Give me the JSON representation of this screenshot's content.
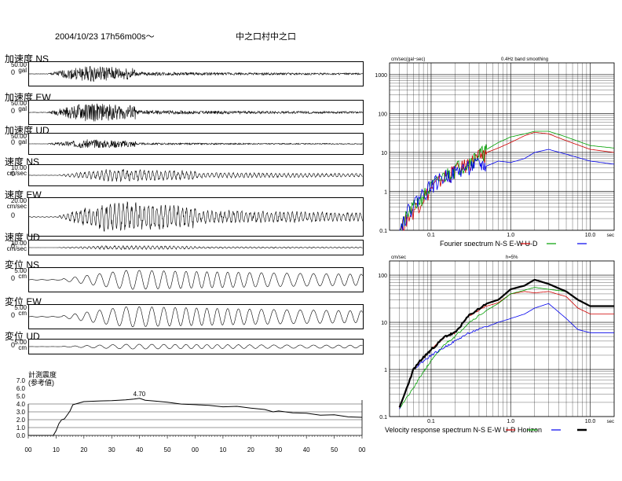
{
  "header": {
    "datetime": "2004/10/23  17h56m00s～",
    "station": "中之口村中之口"
  },
  "traces": [
    {
      "label": "加速度 NS",
      "scale": "50.00",
      "unit": "gal",
      "zero": "0",
      "amp": 0.85,
      "env": "accel",
      "seed": 1
    },
    {
      "label": "加速度 EW",
      "scale": "50.00",
      "unit": "gal",
      "zero": "0",
      "amp": 1.0,
      "env": "accel",
      "seed": 2
    },
    {
      "label": "加速度 UD",
      "scale": "50.00",
      "unit": "gal",
      "zero": "0",
      "amp": 0.55,
      "env": "accel",
      "seed": 3
    },
    {
      "label": "速度 NS",
      "scale": "10.00",
      "unit": "cm/sec",
      "zero": "0",
      "amp": 0.7,
      "env": "vel",
      "seed": 4
    },
    {
      "label": "速度 EW",
      "scale": "20.00",
      "unit": "cm/sec",
      "zero": "0",
      "amp": 0.9,
      "env": "vel",
      "seed": 5
    },
    {
      "label": "速度 UD",
      "scale": "10.00",
      "unit": "cm/sec",
      "zero": "0",
      "amp": 0.35,
      "env": "vel",
      "seed": 6
    },
    {
      "label": "変位 NS",
      "scale": "5.00",
      "unit": "cm",
      "zero": "0",
      "amp": 0.8,
      "env": "disp",
      "seed": 7
    },
    {
      "label": "変位 EW",
      "scale": "5.00",
      "unit": "cm",
      "zero": "0",
      "amp": 0.85,
      "env": "disp",
      "seed": 8
    },
    {
      "label": "変位 UD",
      "scale": "5.00",
      "unit": "cm",
      "zero": "0",
      "amp": 0.35,
      "env": "disp",
      "seed": 9
    }
  ],
  "chart_data": [
    {
      "type": "line",
      "title": "計測震度\n(参考値)",
      "xlabel": "",
      "ylabel": "",
      "xticks": [
        "00",
        "10",
        "20",
        "30",
        "40",
        "50",
        "00",
        "10",
        "20",
        "30",
        "40",
        "50",
        "00"
      ],
      "yticks": [
        "0.0",
        "1.0",
        "2.0",
        "3.0",
        "4.0",
        "5.0",
        "6.0",
        "7.0"
      ],
      "ylim": [
        0,
        7
      ],
      "peak_label": "4.70",
      "x": [
        0,
        9,
        10,
        11,
        12,
        13,
        14,
        15,
        16,
        17,
        18,
        19,
        20,
        25,
        30,
        35,
        38,
        40,
        42,
        45,
        50,
        55,
        60,
        65,
        70,
        75,
        80,
        85,
        88,
        90,
        95,
        100,
        105,
        110,
        115,
        120
      ],
      "y": [
        0.0,
        0.0,
        0.6,
        1.5,
        2.0,
        2.1,
        2.6,
        3.1,
        3.9,
        4.0,
        4.1,
        4.2,
        4.3,
        4.35,
        4.45,
        4.55,
        4.65,
        4.7,
        4.5,
        4.4,
        4.2,
        4.0,
        3.9,
        3.8,
        3.6,
        3.7,
        3.5,
        3.3,
        3.0,
        3.1,
        2.9,
        2.8,
        2.6,
        2.6,
        2.4,
        2.3
      ]
    },
    {
      "type": "line",
      "title": "0.4Hz band smoothing",
      "ylabel": "cm/sec(gal･sec)",
      "xlabel": "sec",
      "log_x": true,
      "log_y": true,
      "xlim": [
        0.03,
        20
      ],
      "ylim": [
        0.1,
        2000
      ],
      "xticks": [
        "0.1",
        "1.0",
        "10.0"
      ],
      "yticks": [
        "0.1",
        "1",
        "10",
        "100",
        "1000"
      ],
      "legend_text": "Fourier spectrum  N-S     E-W     U-D",
      "series": [
        {
          "name": "N-S",
          "color": "#d00000",
          "x": [
            0.04,
            0.05,
            0.07,
            0.1,
            0.15,
            0.2,
            0.3,
            0.4,
            0.5,
            0.7,
            1.0,
            1.5,
            2.0,
            3.0,
            5.0,
            10.0,
            20.0
          ],
          "y": [
            0.1,
            0.2,
            0.5,
            1.2,
            2.5,
            3.5,
            5.5,
            8.0,
            10,
            13,
            18,
            27,
            33,
            30,
            20,
            12,
            10
          ]
        },
        {
          "name": "E-W",
          "color": "#00a000",
          "x": [
            0.04,
            0.05,
            0.07,
            0.1,
            0.15,
            0.2,
            0.3,
            0.4,
            0.5,
            0.7,
            1.0,
            1.5,
            2.0,
            3.0,
            5.0,
            10.0,
            20.0
          ],
          "y": [
            0.1,
            0.25,
            0.6,
            1.3,
            2.6,
            4.0,
            6.0,
            9.0,
            12,
            18,
            25,
            30,
            35,
            35,
            25,
            15,
            13
          ]
        },
        {
          "name": "U-D",
          "color": "#0000ee",
          "x": [
            0.04,
            0.05,
            0.07,
            0.1,
            0.15,
            0.2,
            0.3,
            0.4,
            0.5,
            0.7,
            1.0,
            1.5,
            2.0,
            3.0,
            5.0,
            10.0,
            20.0
          ],
          "y": [
            0.1,
            0.3,
            0.7,
            1.5,
            2.5,
            3.2,
            4.5,
            5.0,
            4.5,
            6.0,
            5.5,
            7.0,
            10,
            12,
            9,
            6,
            5
          ]
        }
      ]
    },
    {
      "type": "line",
      "title": "h=5%",
      "ylabel": "cm/sec",
      "xlabel": "sec",
      "log_x": true,
      "log_y": true,
      "xlim": [
        0.03,
        20
      ],
      "ylim": [
        0.1,
        200
      ],
      "xticks": [
        "0.1",
        "1.0",
        "10.0"
      ],
      "yticks": [
        "0.1",
        "1",
        "10",
        "100"
      ],
      "legend_text": "Velocity response spectrum N-S     E-W     U-D     Horizon",
      "series": [
        {
          "name": "N-S",
          "color": "#d00000",
          "x": [
            0.04,
            0.06,
            0.08,
            0.1,
            0.15,
            0.2,
            0.3,
            0.5,
            0.7,
            1.0,
            1.5,
            2.0,
            3.0,
            5.0,
            7.0,
            10.0,
            20.0
          ],
          "y": [
            0.15,
            1.0,
            1.8,
            2.6,
            5.0,
            6.0,
            14,
            22,
            26,
            40,
            45,
            42,
            45,
            35,
            20,
            15,
            15
          ]
        },
        {
          "name": "E-W",
          "color": "#00a000",
          "x": [
            0.04,
            0.06,
            0.08,
            0.1,
            0.15,
            0.2,
            0.3,
            0.5,
            0.7,
            1.0,
            1.5,
            2.0,
            3.0,
            5.0,
            7.0,
            10.0,
            20.0
          ],
          "y": [
            0.15,
            0.4,
            0.9,
            1.5,
            3.5,
            5.0,
            10,
            18,
            25,
            40,
            48,
            55,
            50,
            45,
            30,
            22,
            22
          ]
        },
        {
          "name": "U-D",
          "color": "#0000ee",
          "x": [
            0.04,
            0.06,
            0.08,
            0.1,
            0.15,
            0.2,
            0.3,
            0.5,
            0.7,
            1.0,
            1.5,
            2.0,
            3.0,
            5.0,
            7.0,
            10.0,
            20.0
          ],
          "y": [
            0.15,
            1.0,
            1.5,
            2.0,
            3.0,
            4.0,
            6.0,
            8.0,
            10,
            12,
            15,
            20,
            25,
            12,
            7,
            6,
            6
          ]
        },
        {
          "name": "Horizon",
          "color": "#000000",
          "x": [
            0.04,
            0.06,
            0.08,
            0.1,
            0.15,
            0.2,
            0.3,
            0.5,
            0.7,
            1.0,
            1.5,
            2.0,
            3.0,
            5.0,
            7.0,
            10.0,
            20.0
          ],
          "y": [
            0.15,
            1.0,
            1.8,
            2.6,
            5.0,
            6.0,
            14,
            25,
            30,
            50,
            60,
            80,
            65,
            45,
            30,
            22,
            22
          ]
        }
      ]
    }
  ]
}
